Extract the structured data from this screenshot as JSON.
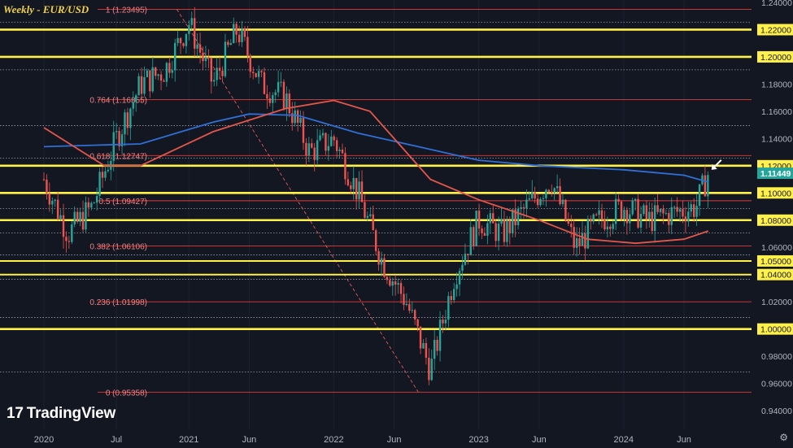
{
  "header": {
    "title": "Weekly - EUR/USD"
  },
  "brand": {
    "logo_mark": "17",
    "logo_text": "TradingView"
  },
  "icons": {
    "settings": "gear-icon",
    "arrow": "arrow-pointer-icon"
  },
  "colors": {
    "background": "#131722",
    "key_level": "#fff04a",
    "fib_line": "#e23b3b",
    "fib_label": "#f08080",
    "ma_short": "#e3574a",
    "ma_long": "#2f6fd6",
    "up_candle": "#26a69a",
    "down_candle": "#ef5350",
    "price_badge": "#26a69a",
    "key_badge": "#fff04a"
  },
  "chart_data": {
    "type": "candlestick",
    "symbol": "EUR/USD",
    "timeframe": "Weekly",
    "ylim": [
      0.93,
      1.245
    ],
    "y_ticks": [
      "1.24000",
      "1.22000",
      "1.20000",
      "1.18000",
      "1.16000",
      "1.14000",
      "1.12000",
      "1.10000",
      "1.08000",
      "1.06000",
      "1.05000",
      "1.04000",
      "1.02000",
      "1.00000",
      "0.98000",
      "0.96000",
      "0.94000"
    ],
    "x_ticks": [
      "2020",
      "Jul",
      "2021",
      "Jun",
      "2022",
      "Jun",
      "2023",
      "Jun",
      "2024",
      "Jun"
    ],
    "current_price": "1.11449",
    "key_levels": [
      "1.22000",
      "1.20000",
      "1.12000",
      "1.10000",
      "1.08000",
      "1.05000",
      "1.04000",
      "1.00000"
    ],
    "fib_levels": [
      {
        "value": 1.23495,
        "label": "1 (1.23495)"
      },
      {
        "value": 1.16855,
        "label": "0.764 (1.16855)"
      },
      {
        "value": 1.12747,
        "label": "0.618 (1.12747)"
      },
      {
        "value": 1.09427,
        "label": "0.5 (1.09427)"
      },
      {
        "value": 1.06106,
        "label": "0.382 (1.06106)"
      },
      {
        "value": 1.01998,
        "label": "0.236 (1.01998)"
      },
      {
        "value": 0.95358,
        "label": "0 (0.95358)"
      }
    ],
    "dotted_levels": [
      1.2255,
      1.1905,
      1.1495,
      1.1255,
      1.0885,
      1.0705,
      1.0545,
      1.0365,
      1.0085,
      0.9685
    ],
    "price_path": [
      [
        "2020-01",
        1.11
      ],
      [
        "2020-03",
        1.07
      ],
      [
        "2020-05",
        1.09
      ],
      [
        "2020-07",
        1.14
      ],
      [
        "2020-09",
        1.18
      ],
      [
        "2020-11",
        1.19
      ],
      [
        "2021-01",
        1.225
      ],
      [
        "2021-03",
        1.18
      ],
      [
        "2021-05",
        1.22
      ],
      [
        "2021-07",
        1.18
      ],
      [
        "2021-09",
        1.17
      ],
      [
        "2021-11",
        1.13
      ],
      [
        "2022-01",
        1.14
      ],
      [
        "2022-03",
        1.1
      ],
      [
        "2022-05",
        1.05
      ],
      [
        "2022-07",
        1.02
      ],
      [
        "2022-09",
        0.97
      ],
      [
        "2022-11",
        1.04
      ],
      [
        "2023-01",
        1.08
      ],
      [
        "2023-03",
        1.07
      ],
      [
        "2023-05",
        1.09
      ],
      [
        "2023-07",
        1.11
      ],
      [
        "2023-09",
        1.06
      ],
      [
        "2023-11",
        1.08
      ],
      [
        "2024-01",
        1.09
      ],
      [
        "2024-03",
        1.08
      ],
      [
        "2024-05",
        1.085
      ],
      [
        "2024-07",
        1.09
      ],
      [
        "2024-08",
        1.1145
      ]
    ],
    "ma_short_path": [
      [
        "2020-01",
        1.148
      ],
      [
        "2020-06",
        1.12
      ],
      [
        "2020-09",
        1.12
      ],
      [
        "2021-03",
        1.145
      ],
      [
        "2021-09",
        1.162
      ],
      [
        "2022-01",
        1.168
      ],
      [
        "2022-04",
        1.16
      ],
      [
        "2022-09",
        1.11
      ],
      [
        "2023-01",
        1.095
      ],
      [
        "2023-06",
        1.08
      ],
      [
        "2023-10",
        1.066
      ],
      [
        "2024-02",
        1.063
      ],
      [
        "2024-06",
        1.066
      ],
      [
        "2024-08",
        1.072
      ]
    ],
    "ma_long_path": [
      [
        "2020-01",
        1.134
      ],
      [
        "2020-09",
        1.136
      ],
      [
        "2021-03",
        1.152
      ],
      [
        "2021-06",
        1.158
      ],
      [
        "2021-10",
        1.157
      ],
      [
        "2022-03",
        1.144
      ],
      [
        "2022-09",
        1.132
      ],
      [
        "2023-01",
        1.124
      ],
      [
        "2023-06",
        1.12
      ],
      [
        "2024-01",
        1.117
      ],
      [
        "2024-06",
        1.113
      ],
      [
        "2024-08",
        1.108
      ]
    ],
    "fib_diagonal": [
      [
        "2020-12",
        1.235
      ],
      [
        "2022-08",
        0.9536
      ]
    ]
  }
}
